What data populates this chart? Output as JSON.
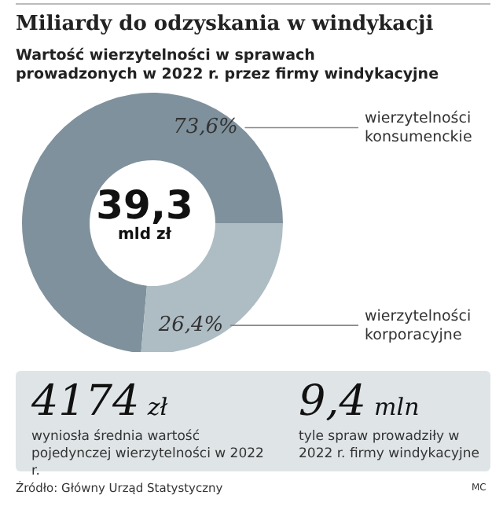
{
  "chart_data": {
    "type": "donut",
    "title": "Miliardy do odzyskania w windykacji",
    "subtitle": "Wartość wierzytelności w sprawach prowadzonych w 2022 r. przez firmy windykacyjne",
    "categories": [
      "wierzytelności konsumenckie",
      "wierzytelności korporacyjne"
    ],
    "values": [
      73.6,
      26.4
    ],
    "colors": [
      "#7f919c",
      "#aebcc4"
    ],
    "value_labels": [
      "73,6%",
      "26,4%"
    ],
    "legend": false,
    "annotations": [
      "39,3",
      "mld zł",
      "4174",
      "zł",
      "wyniosła średnia wartość pojedynczej wierzytelności w 2022 r.",
      "9,4",
      "mln",
      "tyle spraw prowadziły w 2022 r. firmy windykacyjne",
      "Źródło: Główny Urząd Statystyczny",
      "MC"
    ]
  }
}
